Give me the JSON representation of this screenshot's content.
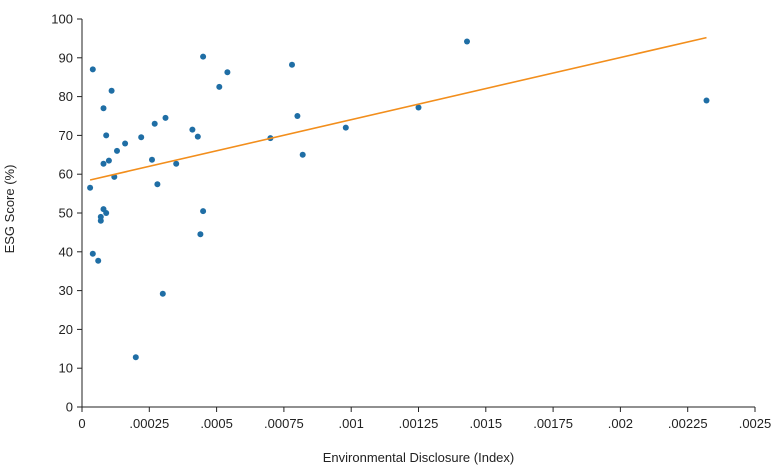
{
  "chart_data": {
    "type": "scatter",
    "xlabel": "Environmental Disclosure (Index)",
    "ylabel": "ESG Score (%)",
    "xlim": [
      0,
      0.0025
    ],
    "ylim": [
      0,
      100
    ],
    "x_ticks": [
      0,
      0.00025,
      0.0005,
      0.00075,
      0.001,
      0.00125,
      0.0015,
      0.00175,
      0.002,
      0.00225,
      0.0025
    ],
    "x_tick_labels": [
      "0",
      ".00025",
      ".0005",
      ".00075",
      ".001",
      ".00125",
      ".0015",
      ".00175",
      ".002",
      ".00225",
      ".0025"
    ],
    "y_ticks": [
      0,
      10,
      20,
      30,
      40,
      50,
      60,
      70,
      80,
      90,
      100
    ],
    "y_tick_labels": [
      "0",
      "10",
      "20",
      "30",
      "40",
      "50",
      "60",
      "70",
      "80",
      "90",
      "100"
    ],
    "grid": false,
    "series": [
      {
        "type": "scatter",
        "color": "#1f6ea5",
        "points": [
          [
            4e-05,
            87
          ],
          [
            3e-05,
            56.5
          ],
          [
            4e-05,
            39.5
          ],
          [
            6e-05,
            37.7
          ],
          [
            7e-05,
            48
          ],
          [
            7e-05,
            49
          ],
          [
            8e-05,
            51
          ],
          [
            9e-05,
            50
          ],
          [
            8e-05,
            62.7
          ],
          [
            0.0001,
            63.5
          ],
          [
            8e-05,
            77
          ],
          [
            9e-05,
            70
          ],
          [
            0.00011,
            81.5
          ],
          [
            0.00012,
            59.3
          ],
          [
            0.00013,
            66
          ],
          [
            0.00016,
            67.9
          ],
          [
            0.0002,
            12.8
          ],
          [
            0.00022,
            69.5
          ],
          [
            0.00026,
            63.7
          ],
          [
            0.00027,
            73
          ],
          [
            0.00028,
            57.4
          ],
          [
            0.0003,
            29.2
          ],
          [
            0.00031,
            74.5
          ],
          [
            0.00035,
            62.7
          ],
          [
            0.00041,
            71.5
          ],
          [
            0.00043,
            69.7
          ],
          [
            0.00044,
            44.5
          ],
          [
            0.00045,
            50.5
          ],
          [
            0.00045,
            90.3
          ],
          [
            0.00051,
            82.5
          ],
          [
            0.00054,
            86.3
          ],
          [
            0.0007,
            69.3
          ],
          [
            0.00078,
            88.2
          ],
          [
            0.0008,
            75
          ],
          [
            0.00082,
            65
          ],
          [
            0.00098,
            72
          ],
          [
            0.00125,
            77.2
          ],
          [
            0.00143,
            94.2
          ],
          [
            0.00232,
            79
          ]
        ]
      },
      {
        "type": "line",
        "name": "",
        "color": "#f28e1c",
        "x": [
          3e-05,
          0.00232
        ],
        "y": [
          58.5,
          95.2
        ]
      }
    ]
  }
}
